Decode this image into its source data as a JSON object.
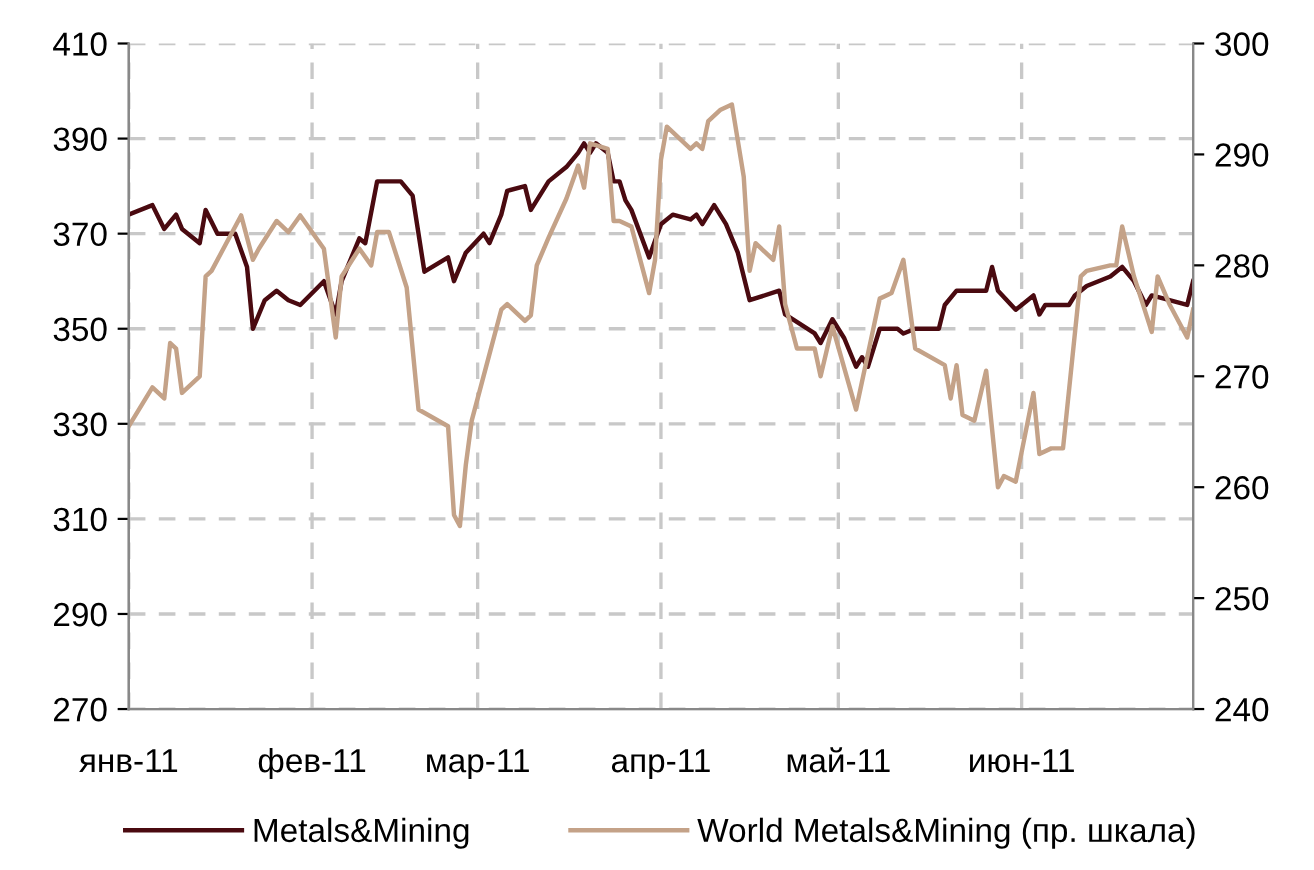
{
  "chart_data": {
    "type": "line",
    "series": [
      {
        "name": "Metals&Mining",
        "color": "#4a0a10",
        "x": [
          "2011-01-01",
          "2011-01-05",
          "2011-01-07",
          "2011-01-09",
          "2011-01-10",
          "2011-01-13",
          "2011-01-14",
          "2011-01-16",
          "2011-01-19",
          "2011-01-21",
          "2011-01-22",
          "2011-01-24",
          "2011-01-26",
          "2011-01-28",
          "2011-01-30",
          "2011-02-03",
          "2011-02-05",
          "2011-02-06",
          "2011-02-09",
          "2011-02-10",
          "2011-02-12",
          "2011-02-14",
          "2011-02-16",
          "2011-02-18",
          "2011-02-20",
          "2011-02-24",
          "2011-02-25",
          "2011-02-27",
          "2011-03-02",
          "2011-03-03",
          "2011-03-05",
          "2011-03-06",
          "2011-03-09",
          "2011-03-10",
          "2011-03-11",
          "2011-03-13",
          "2011-03-16",
          "2011-03-18",
          "2011-03-19",
          "2011-03-20",
          "2011-03-21",
          "2011-03-23",
          "2011-03-24",
          "2011-03-25",
          "2011-03-26",
          "2011-03-27",
          "2011-03-30",
          "2011-04-01",
          "2011-04-03",
          "2011-04-06",
          "2011-04-07",
          "2011-04-08",
          "2011-04-10",
          "2011-04-12",
          "2011-04-14",
          "2011-04-16",
          "2011-04-21",
          "2011-04-22",
          "2011-04-27",
          "2011-04-28",
          "2011-04-30",
          "2011-05-02",
          "2011-05-04",
          "2011-05-05",
          "2011-05-06",
          "2011-05-08",
          "2011-05-11",
          "2011-05-12",
          "2011-05-14",
          "2011-05-18",
          "2011-05-19",
          "2011-05-21",
          "2011-05-26",
          "2011-05-27",
          "2011-05-28",
          "2011-05-31",
          "2011-06-03",
          "2011-06-04",
          "2011-06-05",
          "2011-06-09",
          "2011-06-10",
          "2011-06-12",
          "2011-06-16",
          "2011-06-17",
          "2011-06-18",
          "2011-06-20",
          "2011-06-22",
          "2011-06-23",
          "2011-06-29",
          "2011-06-30"
        ],
        "values": [
          374,
          376,
          371,
          374,
          371,
          368,
          375,
          370,
          370,
          363,
          350,
          356,
          358,
          356,
          355,
          360,
          353,
          360,
          369,
          368,
          381,
          381,
          381,
          378,
          362,
          365,
          360,
          366,
          370,
          368,
          374,
          379,
          380,
          375,
          377,
          381,
          384,
          387,
          389,
          387,
          389,
          387,
          381,
          381,
          377,
          375,
          365,
          372,
          374,
          373,
          374,
          372,
          376,
          372,
          366,
          356,
          358,
          353,
          349,
          347,
          352,
          348,
          342,
          344,
          342,
          350,
          350,
          349,
          350,
          350,
          355,
          358,
          358,
          363,
          358,
          354,
          357,
          353,
          355,
          355,
          357,
          359,
          361,
          362,
          363,
          360,
          355,
          357,
          355,
          360
        ]
      },
      {
        "name": "World Metals&Mining (пр. шкала)",
        "color": "#c4a288",
        "axis": "y2",
        "x": [
          "2011-01-01",
          "2011-01-05",
          "2011-01-07",
          "2011-01-08",
          "2011-01-09",
          "2011-01-10",
          "2011-01-13",
          "2011-01-14",
          "2011-01-15",
          "2011-01-20",
          "2011-01-22",
          "2011-01-23",
          "2011-01-26",
          "2011-01-28",
          "2011-01-30",
          "2011-02-03",
          "2011-02-05",
          "2011-02-06",
          "2011-02-09",
          "2011-02-11",
          "2011-02-12",
          "2011-02-14",
          "2011-02-17",
          "2011-02-19",
          "2011-02-24",
          "2011-02-25",
          "2011-02-26",
          "2011-02-27",
          "2011-02-28",
          "2011-03-03",
          "2011-03-05",
          "2011-03-06",
          "2011-03-09",
          "2011-03-10",
          "2011-03-11",
          "2011-03-13",
          "2011-03-16",
          "2011-03-18",
          "2011-03-19",
          "2011-03-20",
          "2011-03-23",
          "2011-03-24",
          "2011-03-25",
          "2011-03-27",
          "2011-03-30",
          "2011-03-31",
          "2011-04-01",
          "2011-04-02",
          "2011-04-06",
          "2011-04-07",
          "2011-04-08",
          "2011-04-09",
          "2011-04-11",
          "2011-04-13",
          "2011-04-15",
          "2011-04-16",
          "2011-04-17",
          "2011-04-20",
          "2011-04-21",
          "2011-04-22",
          "2011-04-24",
          "2011-04-27",
          "2011-04-28",
          "2011-04-30",
          "2011-05-04",
          "2011-05-08",
          "2011-05-10",
          "2011-05-12",
          "2011-05-14",
          "2011-05-19",
          "2011-05-20",
          "2011-05-21",
          "2011-05-22",
          "2011-05-24",
          "2011-05-26",
          "2011-05-28",
          "2011-05-29",
          "2011-05-31",
          "2011-06-03",
          "2011-06-04",
          "2011-06-06",
          "2011-06-08",
          "2011-06-11",
          "2011-06-12",
          "2011-06-16",
          "2011-06-17",
          "2011-06-18",
          "2011-06-20",
          "2011-06-23",
          "2011-06-24",
          "2011-06-26",
          "2011-06-29",
          "2011-06-30"
        ],
        "values": [
          265.5,
          269,
          268,
          273,
          272.5,
          268.5,
          270,
          279,
          279.5,
          284.5,
          280.5,
          281.5,
          284,
          283,
          284.5,
          281.5,
          273.5,
          279,
          281.5,
          280,
          283,
          283,
          278,
          267,
          265.5,
          257.5,
          256.5,
          262,
          266,
          272,
          276,
          276.5,
          275,
          275.5,
          280,
          282.5,
          286,
          289,
          287,
          291,
          290.5,
          284,
          284,
          283.5,
          277.5,
          280.5,
          289.5,
          292.5,
          290.5,
          291,
          290.5,
          293,
          294,
          294.5,
          288,
          279.5,
          282,
          280.5,
          283.5,
          276.5,
          272.5,
          272.5,
          270,
          274.5,
          267,
          277,
          277.5,
          280.5,
          272.5,
          271,
          268,
          271,
          266.5,
          266,
          270.5,
          260,
          261,
          260.5,
          268.5,
          263,
          263.5,
          263.5,
          279,
          279.5,
          280,
          280,
          283.5,
          279,
          274,
          279,
          276.5,
          273.5,
          276
        ]
      }
    ],
    "xlim": [
      "2011-01-01",
      "2011-06-30"
    ],
    "xticks": [
      {
        "value": "2011-01-01",
        "label": "янв-11"
      },
      {
        "value": "2011-02-01",
        "label": "фев-11"
      },
      {
        "value": "2011-03-01",
        "label": "мар-11"
      },
      {
        "value": "2011-04-01",
        "label": "апр-11"
      },
      {
        "value": "2011-05-01",
        "label": "май-11"
      },
      {
        "value": "2011-06-01",
        "label": "июн-11"
      }
    ],
    "ylim": [
      270,
      410
    ],
    "yticks": [
      270,
      290,
      310,
      330,
      350,
      370,
      390,
      410
    ],
    "y2lim": [
      240,
      300
    ],
    "y2ticks": [
      240,
      250,
      260,
      270,
      280,
      290,
      300
    ],
    "grid": true,
    "legend": "bottom",
    "line_style": "solid",
    "marker": "none"
  }
}
